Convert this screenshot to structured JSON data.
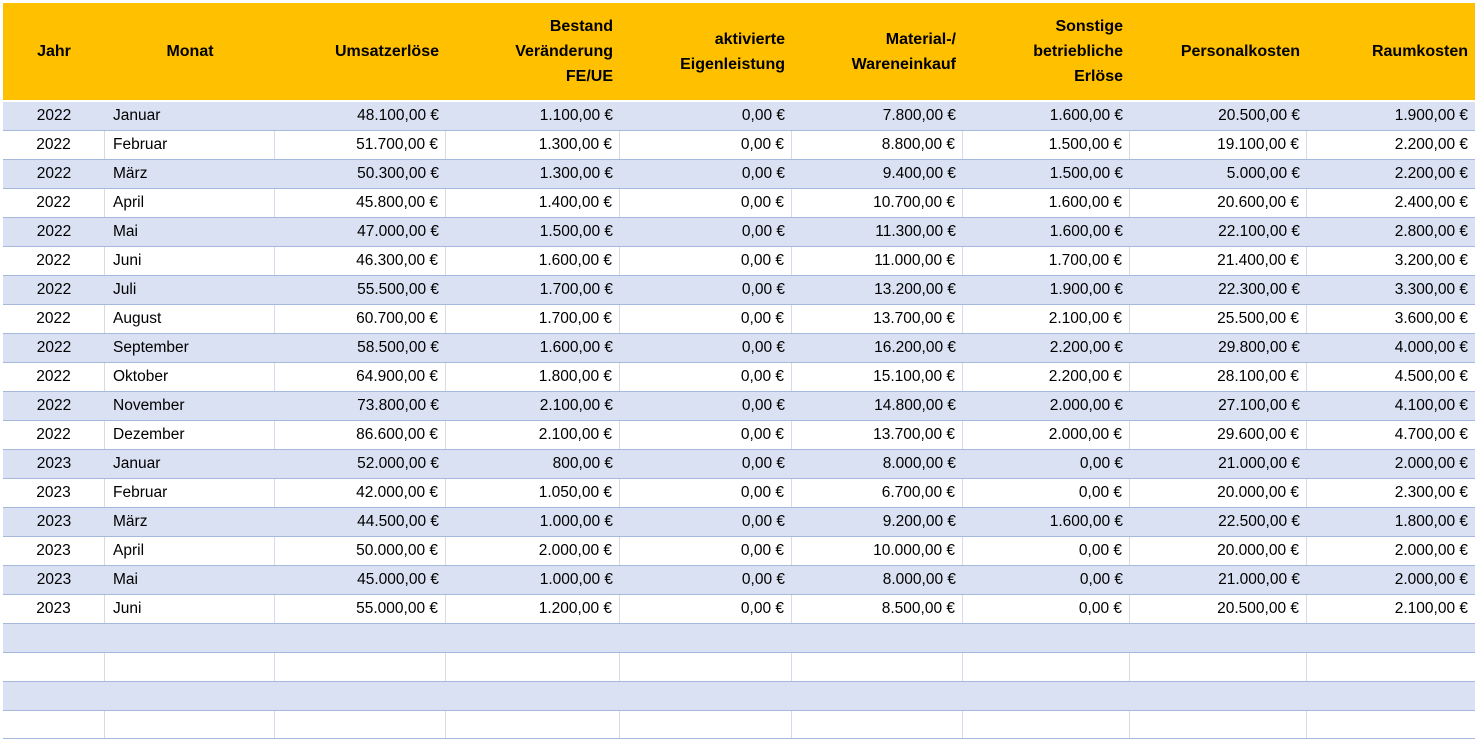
{
  "colors": {
    "header_bg": "#FFC000",
    "band_bg": "#D9E1F2",
    "row_border": "#A6B9DC",
    "grid_border": "#D5DAE6",
    "text": "#000000"
  },
  "table": {
    "columns": [
      {
        "id": "jahr",
        "label": "Jahr"
      },
      {
        "id": "monat",
        "label": "Monat"
      },
      {
        "id": "umsatzerloese",
        "label": "Umsatzerlöse"
      },
      {
        "id": "bestand-veraenderung",
        "label": "Bestand\nVeränderung\nFE/UE"
      },
      {
        "id": "aktivierte-eigenleistung",
        "label": "aktivierte\nEigenleistung"
      },
      {
        "id": "material-wareneinkauf",
        "label": "Material-/\nWareneinkauf"
      },
      {
        "id": "sonstige-betriebliche-erloese",
        "label": "Sonstige\nbetriebliche\nErlöse"
      },
      {
        "id": "personalkosten",
        "label": "Personalkosten"
      },
      {
        "id": "raumkosten",
        "label": "Raumkosten"
      }
    ],
    "rows": [
      {
        "cells": [
          "2022",
          "Januar",
          "48.100,00 €",
          "1.100,00 €",
          "0,00 €",
          "7.800,00 €",
          "1.600,00 €",
          "20.500,00 €",
          "1.900,00 €"
        ]
      },
      {
        "cells": [
          "2022",
          "Februar",
          "51.700,00 €",
          "1.300,00 €",
          "0,00 €",
          "8.800,00 €",
          "1.500,00 €",
          "19.100,00 €",
          "2.200,00 €"
        ]
      },
      {
        "cells": [
          "2022",
          "März",
          "50.300,00 €",
          "1.300,00 €",
          "0,00 €",
          "9.400,00 €",
          "1.500,00 €",
          "5.000,00 €",
          "2.200,00 €"
        ]
      },
      {
        "cells": [
          "2022",
          "April",
          "45.800,00 €",
          "1.400,00 €",
          "0,00 €",
          "10.700,00 €",
          "1.600,00 €",
          "20.600,00 €",
          "2.400,00 €"
        ]
      },
      {
        "cells": [
          "2022",
          "Mai",
          "47.000,00 €",
          "1.500,00 €",
          "0,00 €",
          "11.300,00 €",
          "1.600,00 €",
          "22.100,00 €",
          "2.800,00 €"
        ]
      },
      {
        "cells": [
          "2022",
          "Juni",
          "46.300,00 €",
          "1.600,00 €",
          "0,00 €",
          "11.000,00 €",
          "1.700,00 €",
          "21.400,00 €",
          "3.200,00 €"
        ]
      },
      {
        "cells": [
          "2022",
          "Juli",
          "55.500,00 €",
          "1.700,00 €",
          "0,00 €",
          "13.200,00 €",
          "1.900,00 €",
          "22.300,00 €",
          "3.300,00 €"
        ]
      },
      {
        "cells": [
          "2022",
          "August",
          "60.700,00 €",
          "1.700,00 €",
          "0,00 €",
          "13.700,00 €",
          "2.100,00 €",
          "25.500,00 €",
          "3.600,00 €"
        ]
      },
      {
        "cells": [
          "2022",
          "September",
          "58.500,00 €",
          "1.600,00 €",
          "0,00 €",
          "16.200,00 €",
          "2.200,00 €",
          "29.800,00 €",
          "4.000,00 €"
        ]
      },
      {
        "cells": [
          "2022",
          "Oktober",
          "64.900,00 €",
          "1.800,00 €",
          "0,00 €",
          "15.100,00 €",
          "2.200,00 €",
          "28.100,00 €",
          "4.500,00 €"
        ]
      },
      {
        "cells": [
          "2022",
          "November",
          "73.800,00 €",
          "2.100,00 €",
          "0,00 €",
          "14.800,00 €",
          "2.000,00 €",
          "27.100,00 €",
          "4.100,00 €"
        ]
      },
      {
        "cells": [
          "2022",
          "Dezember",
          "86.600,00 €",
          "2.100,00 €",
          "0,00 €",
          "13.700,00 €",
          "2.000,00 €",
          "29.600,00 €",
          "4.700,00 €"
        ]
      },
      {
        "cells": [
          "2023",
          "Januar",
          "52.000,00 €",
          "800,00 €",
          "0,00 €",
          "8.000,00 €",
          "0,00 €",
          "21.000,00 €",
          "2.000,00 €"
        ]
      },
      {
        "cells": [
          "2023",
          "Februar",
          "42.000,00 €",
          "1.050,00 €",
          "0,00 €",
          "6.700,00 €",
          "0,00 €",
          "20.000,00 €",
          "2.300,00 €"
        ]
      },
      {
        "cells": [
          "2023",
          "März",
          "44.500,00 €",
          "1.000,00 €",
          "0,00 €",
          "9.200,00 €",
          "1.600,00 €",
          "22.500,00 €",
          "1.800,00 €"
        ]
      },
      {
        "cells": [
          "2023",
          "April",
          "50.000,00 €",
          "2.000,00 €",
          "0,00 €",
          "10.000,00 €",
          "0,00 €",
          "20.000,00 €",
          "2.000,00 €"
        ]
      },
      {
        "cells": [
          "2023",
          "Mai",
          "45.000,00 €",
          "1.000,00 €",
          "0,00 €",
          "8.000,00 €",
          "0,00 €",
          "21.000,00 €",
          "2.000,00 €"
        ]
      },
      {
        "cells": [
          "2023",
          "Juni",
          "55.000,00 €",
          "1.200,00 €",
          "0,00 €",
          "8.500,00 €",
          "0,00 €",
          "20.500,00 €",
          "2.100,00 €"
        ]
      }
    ],
    "empty_row_count": 4
  }
}
